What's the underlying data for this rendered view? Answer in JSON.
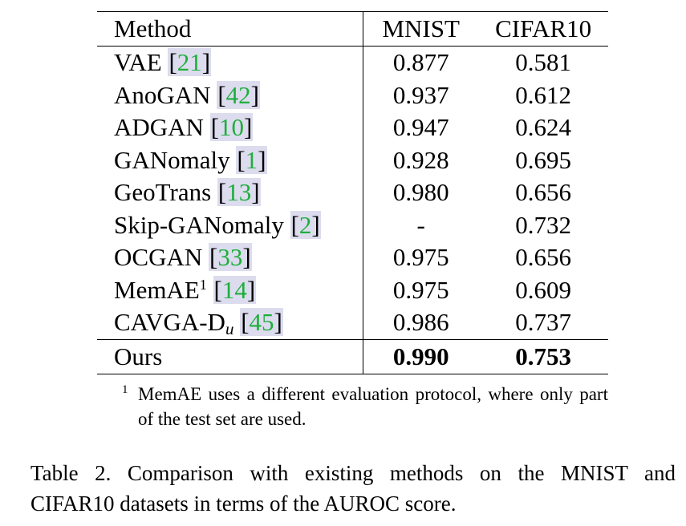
{
  "table": {
    "headers": {
      "method": "Method",
      "mnist": "MNIST",
      "cifar": "CIFAR10"
    },
    "rows": [
      {
        "method": "VAE",
        "cite": "21",
        "mnist": "0.877",
        "cifar": "0.581"
      },
      {
        "method": "AnoGAN",
        "cite": "42",
        "mnist": "0.937",
        "cifar": "0.612"
      },
      {
        "method": "ADGAN",
        "cite": "10",
        "mnist": "0.947",
        "cifar": "0.624"
      },
      {
        "method": "GANomaly",
        "cite": "1",
        "mnist": "0.928",
        "cifar": "0.695"
      },
      {
        "method": "GeoTrans",
        "cite": "13",
        "mnist": "0.980",
        "cifar": "0.656"
      },
      {
        "method": "Skip-GANomaly",
        "cite": "2",
        "mnist": "-",
        "cifar": "0.732"
      },
      {
        "method": "OCGAN",
        "cite": "33",
        "mnist": "0.975",
        "cifar": "0.656"
      },
      {
        "method": "MemAE",
        "footnote_mark": "1",
        "cite": "14",
        "mnist": "0.975",
        "cifar": "0.609"
      },
      {
        "method": "CAVGA-D",
        "subscript": "u",
        "cite": "45",
        "mnist": "0.986",
        "cifar": "0.737"
      }
    ],
    "ours": {
      "method": "Ours",
      "mnist": "0.990",
      "cifar": "0.753"
    },
    "cite_open": "[",
    "cite_close": "]",
    "colors": {
      "citation_number": "#1fae3c",
      "citation_box": "#dcdcee"
    }
  },
  "footnote": {
    "mark": "1",
    "text": "MemAE uses a different evaluation protocol, where only part of the test set are used."
  },
  "caption": {
    "line1": "Table 2. Comparison with existing methods on the MNIST and",
    "line2": "CIFAR10 datasets in terms of the AUROC score."
  }
}
